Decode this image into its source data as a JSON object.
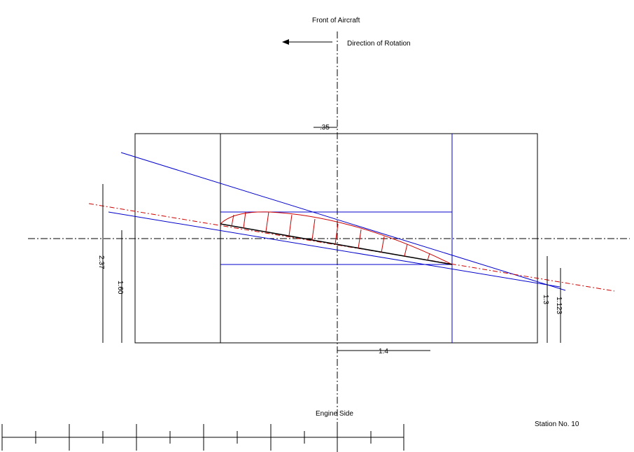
{
  "labels": {
    "front": "Front of Aircraft",
    "rotation": "Direction of Rotation",
    "engine": "Engine Side",
    "station": "Station No. 10"
  },
  "dimensions": {
    "top": ".35",
    "bottom": "1.4",
    "left_outer": "2.37",
    "left_inner": "1.60",
    "right_inner": "1.3",
    "right_outer": "1.123"
  },
  "colors": {
    "outline": "#000000",
    "construction": "#0000cc",
    "airfoil": "#cc0000"
  }
}
